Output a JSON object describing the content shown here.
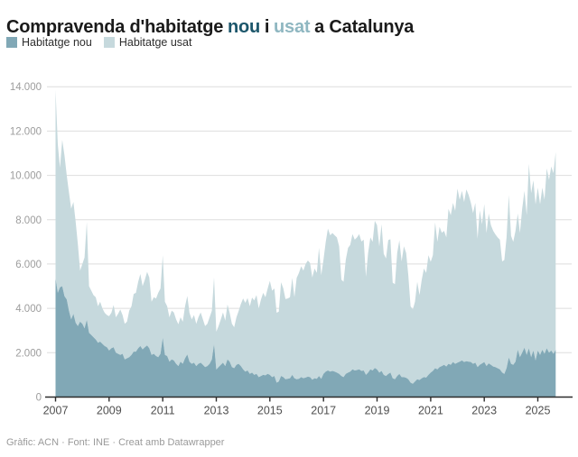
{
  "title": {
    "prefix": "Compravenda d'habitatge",
    "nou_word": "nou",
    "connector": "i",
    "usat_word": "usat",
    "suffix": "a Catalunya"
  },
  "legend": [
    {
      "label": "Habitatge nou",
      "color": "#81a8b6"
    },
    {
      "label": "Habitatge usat",
      "color": "#c6d9dd"
    }
  ],
  "footer": {
    "text": "Gràfic: ACN · Font: INE · Creat amb Datawrapper"
  },
  "colors": {
    "area_nou": "#81a8b6",
    "area_usat": "#c6d9dd",
    "title_nou": "#1c566b",
    "title_usat": "#8fb7c1",
    "gridline": "#dedede",
    "axis_line": "#2b2b2b",
    "y_label": "#9d9d9d",
    "x_label": "#4f4f4f"
  },
  "chart_data": {
    "type": "area",
    "stacked": true,
    "x_start": "2007-01",
    "x_end": "2025-09",
    "x_frequency": "monthly",
    "x_tick_labels": [
      "2007",
      "2009",
      "2011",
      "2013",
      "2015",
      "2017",
      "2019",
      "2021",
      "2023",
      "2025"
    ],
    "y_ticks": [
      0,
      2000,
      4000,
      6000,
      8000,
      10000,
      12000,
      14000
    ],
    "y_tick_labels": [
      "0",
      "2.000",
      "4.000",
      "6.000",
      "8.000",
      "10.000",
      "12.000",
      "14.000"
    ],
    "ylim": [
      0,
      14000
    ],
    "grid": true,
    "legend_position": "top-left",
    "series": [
      {
        "name": "Habitatge nou",
        "color": "#81a8b6",
        "values": [
          5350,
          4700,
          4950,
          5000,
          4550,
          4400,
          3900,
          3500,
          3750,
          3350,
          3200,
          3400,
          3300,
          3100,
          3480,
          2900,
          2800,
          2700,
          2600,
          2450,
          2500,
          2400,
          2300,
          2250,
          2100,
          2200,
          2250,
          2000,
          1950,
          1900,
          1950,
          1700,
          1750,
          1800,
          1900,
          2050,
          2050,
          2200,
          2300,
          2150,
          2250,
          2330,
          2200,
          1900,
          1950,
          1850,
          1800,
          1950,
          2670,
          1900,
          1850,
          1600,
          1700,
          1650,
          1500,
          1400,
          1600,
          1500,
          1750,
          1920,
          1600,
          1500,
          1550,
          1400,
          1500,
          1550,
          1450,
          1350,
          1400,
          1500,
          1700,
          2390,
          1240,
          1350,
          1450,
          1550,
          1400,
          1700,
          1600,
          1350,
          1300,
          1450,
          1500,
          1400,
          1250,
          1150,
          1200,
          1050,
          1100,
          1000,
          1050,
          900,
          950,
          1000,
          980,
          1050,
          1000,
          900,
          950,
          650,
          700,
          950,
          900,
          800,
          820,
          850,
          1000,
          850,
          800,
          820,
          900,
          850,
          880,
          920,
          900,
          780,
          850,
          820,
          950,
          820,
          1050,
          1150,
          1200,
          1150,
          1180,
          1150,
          1100,
          1050,
          950,
          900,
          1050,
          1100,
          1150,
          1250,
          1200,
          1220,
          1250,
          1180,
          1200,
          1000,
          1100,
          1250,
          1200,
          1310,
          1245,
          1100,
          1180,
          1000,
          950,
          1040,
          1100,
          850,
          800,
          950,
          1040,
          900,
          900,
          870,
          800,
          650,
          600,
          700,
          800,
          770,
          850,
          900,
          880,
          1000,
          1100,
          1180,
          1300,
          1250,
          1350,
          1400,
          1450,
          1380,
          1500,
          1450,
          1580,
          1500,
          1550,
          1600,
          1650,
          1580,
          1620,
          1600,
          1580,
          1500,
          1550,
          1350,
          1450,
          1515,
          1580,
          1400,
          1520,
          1450,
          1380,
          1350,
          1300,
          1250,
          1110,
          1040,
          1300,
          1790,
          1500,
          1450,
          1600,
          2135,
          1800,
          2000,
          2230,
          1900,
          2200,
          1800,
          2100,
          1650,
          2100,
          1900,
          2135,
          1950,
          2200,
          2000,
          2100,
          1950,
          2135
        ]
      },
      {
        "name": "Habitatge usat",
        "color": "#c6d9dd",
        "values": [
          8500,
          6700,
          5400,
          6600,
          6350,
          5600,
          5350,
          5000,
          5050,
          4550,
          3700,
          2300,
          2700,
          3200,
          4420,
          2100,
          2000,
          1900,
          1900,
          1650,
          1800,
          1600,
          1500,
          1450,
          1550,
          1600,
          1900,
          1600,
          1800,
          2050,
          1750,
          1600,
          1650,
          2100,
          2200,
          2600,
          2650,
          3000,
          3250,
          2850,
          3050,
          3320,
          3200,
          2400,
          2550,
          2600,
          2900,
          2950,
          3730,
          2400,
          2250,
          2000,
          2200,
          2170,
          2000,
          1880,
          2000,
          1900,
          2350,
          2640,
          2200,
          2000,
          2150,
          1900,
          2100,
          2270,
          2050,
          1850,
          1900,
          2100,
          2200,
          3010,
          1710,
          1850,
          2050,
          2270,
          2050,
          2470,
          2200,
          1950,
          1850,
          2150,
          2380,
          2800,
          3200,
          3100,
          3270,
          3050,
          3390,
          3360,
          3550,
          3100,
          3450,
          3700,
          3520,
          3850,
          4240,
          3900,
          3950,
          3150,
          3150,
          4230,
          4000,
          3620,
          3630,
          3650,
          4380,
          3650,
          4580,
          4780,
          5000,
          4850,
          5120,
          5240,
          5150,
          4620,
          4950,
          4780,
          5780,
          4680,
          5150,
          5850,
          6400,
          6150,
          6220,
          6150,
          6100,
          5750,
          4350,
          4300,
          5150,
          5630,
          5710,
          6100,
          5900,
          5980,
          6100,
          5840,
          5900,
          4430,
          5400,
          5950,
          5800,
          6640,
          6505,
          5690,
          6620,
          5460,
          5300,
          6040,
          6020,
          4310,
          4290,
          5550,
          6030,
          5220,
          5900,
          5630,
          4700,
          3450,
          3350,
          3600,
          4400,
          3830,
          4450,
          4900,
          4720,
          5400,
          5000,
          5220,
          6580,
          5750,
          6330,
          6010,
          6050,
          5820,
          6990,
          6750,
          7180,
          6900,
          7850,
          7300,
          7650,
          7220,
          7750,
          7520,
          7180,
          6800,
          7210,
          5790,
          6970,
          6285,
          7120,
          6000,
          6760,
          6300,
          6120,
          5990,
          5900,
          5850,
          5010,
          5140,
          5900,
          7330,
          5770,
          5550,
          5900,
          6145,
          5600,
          6500,
          7070,
          6300,
          8320,
          7400,
          7680,
          7040,
          7350,
          6800,
          7315,
          6950,
          8110,
          7800,
          8300,
          8150,
          8915
        ]
      }
    ]
  }
}
